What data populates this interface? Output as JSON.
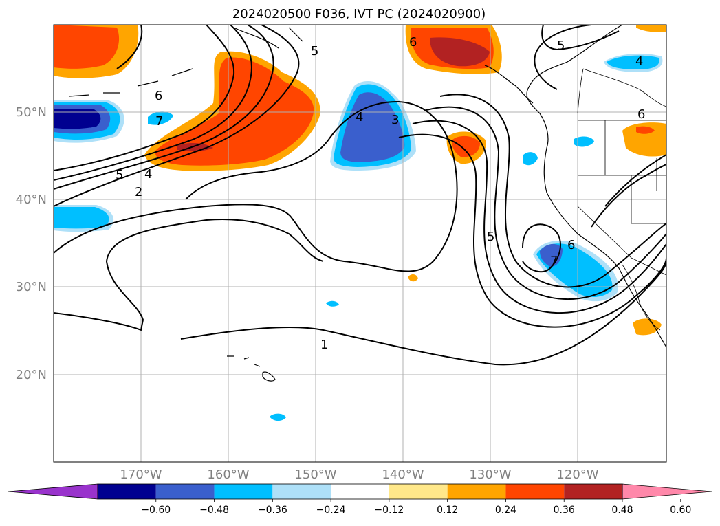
{
  "title": "2024020500 F036, IVT PC (2024020900)",
  "latitude_labels": [
    "50°N",
    "40°N",
    "30°N",
    "20°N"
  ],
  "longitude_labels": [
    "170°W",
    "160°W",
    "150°W",
    "140°W",
    "130°W",
    "120°W"
  ],
  "colorbar": {
    "ticks": [
      "−0.60",
      "−0.48",
      "−0.36",
      "−0.24",
      "−0.12",
      "0.12",
      "0.24",
      "0.36",
      "0.48",
      "0.60"
    ],
    "colors": [
      "#9933cc",
      "#000090",
      "#3a5fcd",
      "#00bfff",
      "#aee0f8",
      "#ffffff",
      "#ffe88a",
      "#ffa500",
      "#ff4500",
      "#b22222",
      "#ff88aa"
    ]
  },
  "contour_labels": [
    "5",
    "6",
    "7",
    "5",
    "4",
    "2",
    "4",
    "3",
    "5",
    "6",
    "4",
    "6",
    "5",
    "7",
    "6",
    "1"
  ],
  "colors": {
    "land": "#000000",
    "grid": "#b0b0b0",
    "contour": "#000000"
  }
}
